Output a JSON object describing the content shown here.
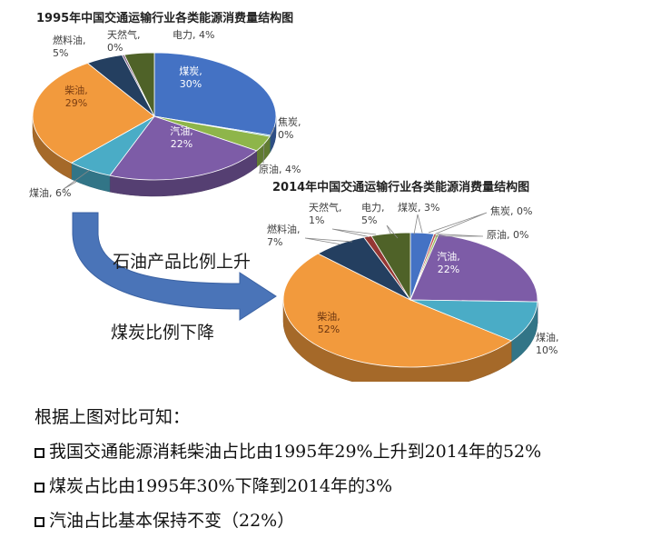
{
  "chart_data": [
    {
      "type": "pie",
      "title": "1995年中国交通运输行业各类能源消费量结构图",
      "slices": [
        {
          "name": "煤炭",
          "pct": "30%",
          "value": 30,
          "color": "#4472c4"
        },
        {
          "name": "焦炭",
          "pct": "0%",
          "value": 0.3,
          "color": "#4bacc6"
        },
        {
          "name": "原油",
          "pct": "4%",
          "value": 4,
          "color": "#8eb54a"
        },
        {
          "name": "汽油",
          "pct": "22%",
          "value": 22,
          "color": "#7d5ca7"
        },
        {
          "name": "煤油",
          "pct": "6%",
          "value": 6,
          "color": "#4aacc6"
        },
        {
          "name": "柴油",
          "pct": "29%",
          "value": 29,
          "color": "#f29a3d"
        },
        {
          "name": "燃料油",
          "pct": "5%",
          "value": 5,
          "color": "#243f60"
        },
        {
          "name": "天然气",
          "pct": "0%",
          "value": 0.3,
          "color": "#7f6084"
        },
        {
          "name": "电力",
          "pct": "4%",
          "value": 4,
          "color": "#4f6228"
        }
      ]
    },
    {
      "type": "pie",
      "title": "2014年中国交通运输行业各类能源消费量结构图",
      "slices": [
        {
          "name": "煤炭",
          "pct": "3%",
          "value": 3,
          "color": "#4472c4"
        },
        {
          "name": "焦炭",
          "pct": "0%",
          "value": 0.3,
          "color": "#c0504d"
        },
        {
          "name": "原油",
          "pct": "0%",
          "value": 0.3,
          "color": "#9bbb59"
        },
        {
          "name": "汽油",
          "pct": "22%",
          "value": 22,
          "color": "#7d5ca7"
        },
        {
          "name": "煤油",
          "pct": "10%",
          "value": 10,
          "color": "#4aacc6"
        },
        {
          "name": "柴油",
          "pct": "52%",
          "value": 52,
          "color": "#f29a3d"
        },
        {
          "name": "燃料油",
          "pct": "7%",
          "value": 7,
          "color": "#243f60"
        },
        {
          "name": "天然气",
          "pct": "1%",
          "value": 1,
          "color": "#953734"
        },
        {
          "name": "电力",
          "pct": "5%",
          "value": 5,
          "color": "#4f6228"
        }
      ]
    }
  ],
  "arrow": {
    "color": "#4a74b8",
    "label_top": "石油产品比例上升",
    "label_bottom": "煤炭比例下降"
  },
  "notes": {
    "intro": "根据上图对比可知：",
    "items": [
      "我国交通能源消耗柴油占比由1995年29%上升到2014年的52%",
      "煤炭占比由1995年30%下降到2014年的3%",
      "汽油占比基本保持不变（22%）"
    ]
  }
}
